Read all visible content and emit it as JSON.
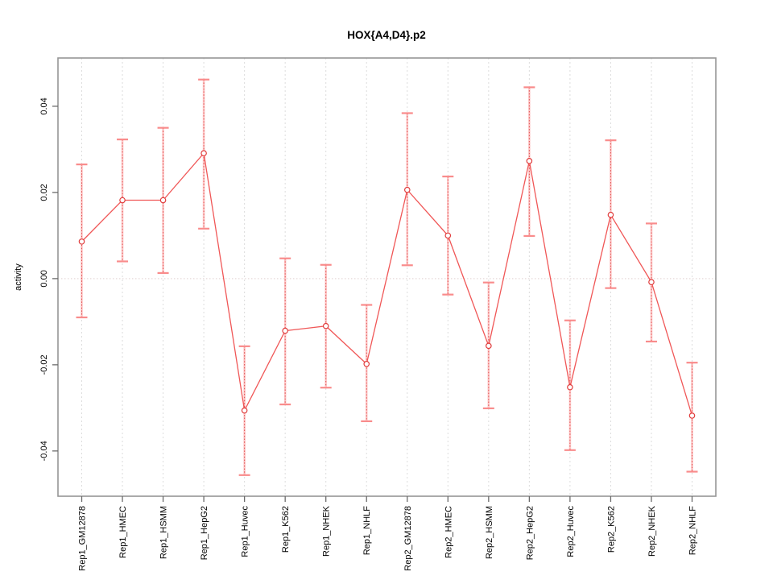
{
  "chart_data": {
    "type": "line",
    "title": "HOX{A4,D4}.p2",
    "xlabel": "",
    "ylabel": "activity",
    "categories": [
      "Rep1_GM12878",
      "Rep1_HMEC",
      "Rep1_HSMM",
      "Rep1_HepG2",
      "Rep1_Huvec",
      "Rep1_K562",
      "Rep1_NHEK",
      "Rep1_NHLF",
      "Rep2_GM12878",
      "Rep2_HMEC",
      "Rep2_HSMM",
      "Rep2_HepG2",
      "Rep2_Huvec",
      "Rep2_K562",
      "Rep2_NHEK",
      "Rep2_NHLF"
    ],
    "series": [
      {
        "name": "activity",
        "values": [
          0.0086,
          0.0182,
          0.0182,
          0.0291,
          -0.0306,
          -0.0121,
          -0.011,
          -0.0198,
          0.0206,
          0.01,
          -0.0156,
          0.0273,
          -0.0252,
          0.0148,
          -0.0008,
          -0.0318
        ],
        "error_low": [
          -0.009,
          0.004,
          0.0013,
          0.0116,
          -0.0456,
          -0.0292,
          -0.0253,
          -0.0331,
          0.0031,
          -0.0037,
          -0.0301,
          0.0099,
          -0.0398,
          -0.0022,
          -0.0146,
          -0.0448
        ],
        "error_high": [
          0.0265,
          0.0323,
          0.035,
          0.0462,
          -0.0157,
          0.0047,
          0.0032,
          -0.0061,
          0.0384,
          0.0237,
          -0.0009,
          0.0444,
          -0.0097,
          0.0321,
          0.0128,
          -0.0195
        ]
      }
    ],
    "yticks": [
      -0.04,
      -0.02,
      0.0,
      0.02,
      0.04
    ],
    "ytick_labels": [
      "-0.04",
      "-0.02",
      "0.00",
      "0.02",
      "0.04"
    ],
    "ylim": [
      -0.0505,
      0.0512
    ],
    "grid": {
      "vertical_dashed": true,
      "zero_line_dotted": true,
      "horizontal_gridlines": false
    },
    "legend": "none",
    "marker": "open-circle",
    "colors": {
      "line": "#ee4545",
      "error_stem": "#ff9f9f",
      "error_stem_dash": "#dd3c3c",
      "error_cap": "#f98c8c",
      "marker_stroke": "#e03d3d",
      "marker_fill": "#ffffff",
      "gridline": "#dcdcdc",
      "zero_line": "#e6d9d9",
      "frame": "#969696",
      "tick": "#6b6b6b",
      "text": "#000000",
      "background": "#ffffff"
    }
  }
}
